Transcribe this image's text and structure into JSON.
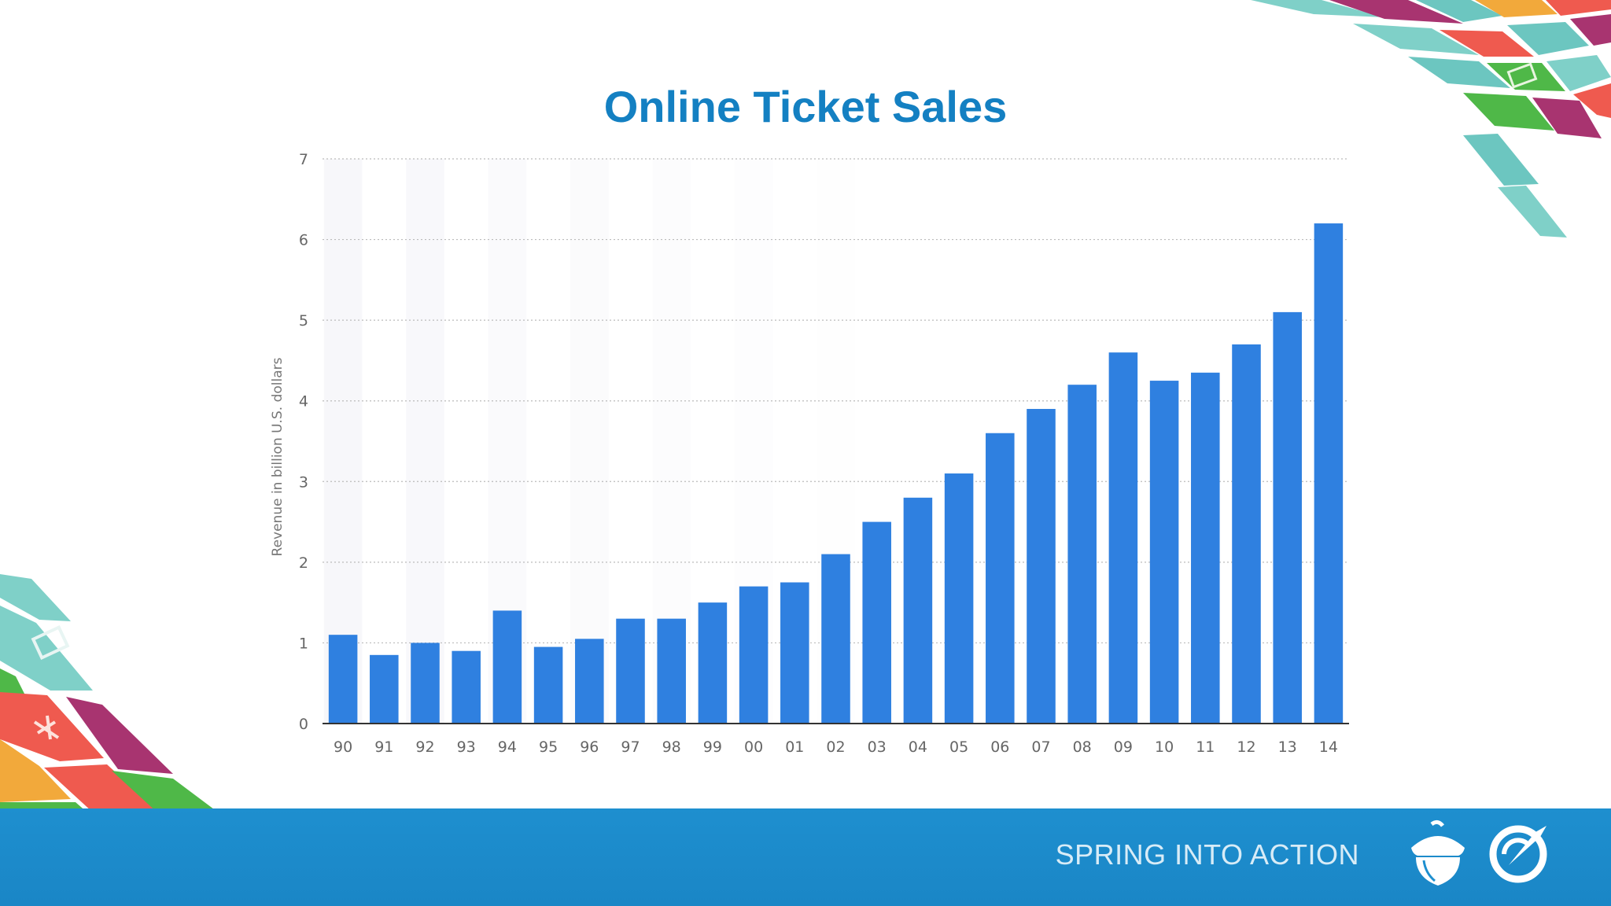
{
  "footer": {
    "tagline": "SPRING INTO ACTION"
  },
  "icons": [
    "acorn-icon",
    "compass-icon"
  ],
  "colors": {
    "title": "#1480c2",
    "bar": "#2f80e0",
    "footer_band": "#1e8fcf"
  },
  "chart_data": {
    "type": "bar",
    "title": "Online Ticket Sales",
    "xlabel": "",
    "ylabel": "Revenue in billion U.S. dollars",
    "ylim": [
      0,
      7
    ],
    "yticks": [
      0,
      1,
      2,
      3,
      4,
      5,
      6,
      7
    ],
    "grid": true,
    "categories": [
      "90",
      "91",
      "92",
      "93",
      "94",
      "95",
      "96",
      "97",
      "98",
      "99",
      "00",
      "01",
      "02",
      "03",
      "04",
      "05",
      "06",
      "07",
      "08",
      "09",
      "10",
      "11",
      "12",
      "13",
      "14"
    ],
    "values": [
      1.1,
      0.85,
      1.0,
      0.9,
      1.4,
      0.95,
      1.05,
      1.3,
      1.3,
      1.5,
      1.7,
      1.75,
      2.1,
      2.5,
      2.8,
      3.1,
      3.6,
      3.9,
      4.2,
      4.6,
      4.25,
      4.35,
      4.7,
      5.1,
      6.2
    ]
  }
}
